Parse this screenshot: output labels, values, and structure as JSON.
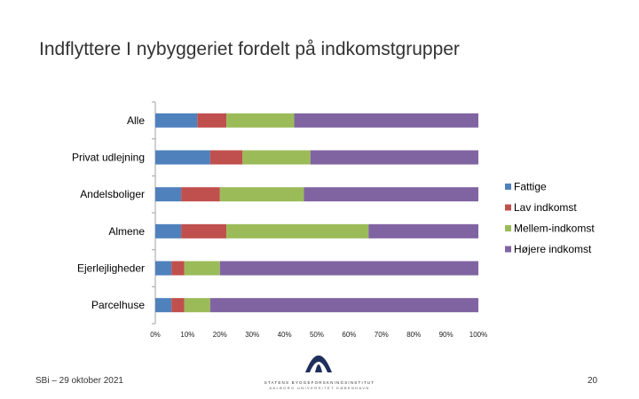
{
  "slide": {
    "title": "Indflyttere I nybyggeriet fordelt på indkomstgrupper",
    "footer_left": "SBi – 29 oktober 2021",
    "page_number": "20"
  },
  "logo": {
    "line1": "STATENS BYGGEFORSKNINGSINSTITUT",
    "line2": "AALBORG UNIVERSITET KØBENHAVN"
  },
  "colors": {
    "Fattige": "#4f81bd",
    "Lav indkomst": "#c0504d",
    "Mellem-indkomst": "#9bbb59",
    "Højere indkomst": "#8064a2"
  },
  "chart_data": {
    "type": "bar",
    "orientation": "horizontal",
    "stacked": "100%",
    "title": "",
    "xlabel": "",
    "ylabel": "",
    "xlim": [
      0,
      100
    ],
    "x_ticks": [
      "0%",
      "10%",
      "20%",
      "30%",
      "40%",
      "50%",
      "60%",
      "70%",
      "80%",
      "90%",
      "100%"
    ],
    "categories": [
      "Alle",
      "Privat udlejning",
      "Andelsboliger",
      "Almene",
      "Ejerlejligheder",
      "Parcelhuse"
    ],
    "series": [
      {
        "name": "Fattige",
        "values": [
          13,
          17,
          8,
          8,
          5,
          5
        ]
      },
      {
        "name": "Lav indkomst",
        "values": [
          9,
          10,
          12,
          14,
          4,
          4
        ]
      },
      {
        "name": "Mellem-indkomst",
        "values": [
          21,
          21,
          26,
          44,
          11,
          8
        ]
      },
      {
        "name": "Højere indkomst",
        "values": [
          57,
          52,
          54,
          34,
          80,
          83
        ]
      }
    ],
    "legend_position": "right",
    "grid": false
  }
}
